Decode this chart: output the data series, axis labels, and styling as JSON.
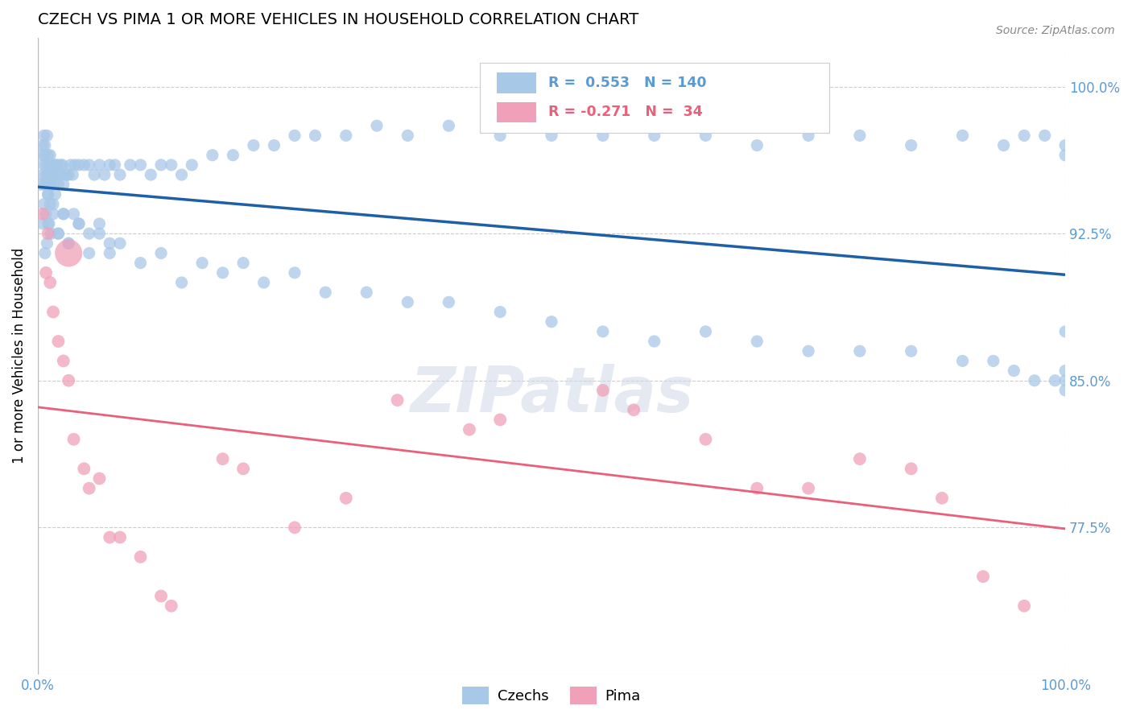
{
  "title": "CZECH VS PIMA 1 OR MORE VEHICLES IN HOUSEHOLD CORRELATION CHART",
  "source_text": "Source: ZipAtlas.com",
  "ylabel": "1 or more Vehicles in Household",
  "xlim": [
    0.0,
    100.0
  ],
  "ylim": [
    70.0,
    102.5
  ],
  "yticks": [
    77.5,
    85.0,
    92.5,
    100.0
  ],
  "ytick_labels": [
    "77.5%",
    "85.0%",
    "92.5%",
    "100.0%"
  ],
  "xtick_labels": [
    "0.0%",
    "100.0%"
  ],
  "czechs_R": 0.553,
  "czechs_N": 140,
  "pima_R": -0.271,
  "pima_N": 34,
  "blue_color": "#5b9bd5",
  "pink_color": "#e8607a",
  "dot_blue": "#a8c8e8",
  "dot_pink": "#f0a0b8",
  "trend_blue": "#1f5fa6",
  "trend_pink": "#e8607a",
  "background_color": "#ffffff",
  "grid_color": "#cccccc",
  "czechs_x": [
    0.3,
    0.4,
    0.5,
    0.5,
    0.6,
    0.6,
    0.7,
    0.7,
    0.7,
    0.8,
    0.8,
    0.9,
    0.9,
    1.0,
    1.0,
    1.0,
    1.1,
    1.1,
    1.2,
    1.2,
    1.3,
    1.3,
    1.4,
    1.5,
    1.5,
    1.6,
    1.7,
    1.8,
    1.9,
    2.0,
    2.1,
    2.2,
    2.3,
    2.4,
    2.5,
    2.8,
    3.0,
    3.2,
    3.4,
    3.6,
    4.0,
    4.5,
    5.0,
    5.5,
    6.0,
    6.5,
    7.0,
    7.5,
    8.0,
    9.0,
    10.0,
    11.0,
    12.0,
    13.0,
    14.0,
    15.0,
    17.0,
    19.0,
    21.0,
    23.0,
    25.0,
    27.0,
    30.0,
    33.0,
    36.0,
    40.0,
    45.0,
    50.0,
    55.0,
    60.0,
    65.0,
    70.0,
    75.0,
    80.0,
    85.0,
    90.0,
    94.0,
    96.0,
    98.0,
    100.0,
    0.5,
    0.6,
    0.7,
    0.8,
    0.9,
    1.0,
    1.1,
    1.2,
    1.3,
    1.5,
    1.7,
    2.0,
    2.5,
    3.0,
    4.0,
    5.0,
    6.0,
    7.0,
    8.0,
    10.0,
    12.0,
    14.0,
    16.0,
    18.0,
    20.0,
    22.0,
    25.0,
    28.0,
    32.0,
    36.0,
    40.0,
    45.0,
    50.0,
    55.0,
    60.0,
    65.0,
    70.0,
    75.0,
    80.0,
    85.0,
    90.0,
    93.0,
    95.0,
    97.0,
    99.0,
    100.0,
    100.0,
    100.0,
    100.0,
    100.0,
    1.0,
    1.5,
    2.0,
    2.5,
    3.0,
    3.5,
    4.0,
    5.0,
    6.0,
    7.0
  ],
  "czechs_y": [
    95.0,
    96.5,
    97.0,
    95.5,
    96.0,
    97.5,
    95.0,
    96.5,
    97.0,
    95.5,
    96.0,
    95.0,
    97.5,
    94.5,
    95.5,
    96.5,
    95.0,
    96.0,
    95.5,
    96.5,
    95.0,
    96.0,
    95.5,
    95.0,
    96.0,
    95.5,
    96.0,
    95.5,
    96.0,
    95.0,
    95.5,
    96.0,
    95.5,
    96.0,
    95.0,
    95.5,
    95.5,
    96.0,
    95.5,
    96.0,
    96.0,
    96.0,
    96.0,
    95.5,
    96.0,
    95.5,
    96.0,
    96.0,
    95.5,
    96.0,
    96.0,
    95.5,
    96.0,
    96.0,
    95.5,
    96.0,
    96.5,
    96.5,
    97.0,
    97.0,
    97.5,
    97.5,
    97.5,
    98.0,
    97.5,
    98.0,
    97.5,
    97.5,
    97.5,
    97.5,
    97.5,
    97.0,
    97.5,
    97.5,
    97.0,
    97.5,
    97.0,
    97.5,
    97.5,
    97.0,
    93.0,
    94.0,
    91.5,
    93.5,
    92.0,
    94.5,
    93.0,
    94.0,
    92.5,
    93.5,
    94.5,
    92.5,
    93.5,
    92.0,
    93.0,
    91.5,
    92.5,
    91.5,
    92.0,
    91.0,
    91.5,
    90.0,
    91.0,
    90.5,
    91.0,
    90.0,
    90.5,
    89.5,
    89.5,
    89.0,
    89.0,
    88.5,
    88.0,
    87.5,
    87.0,
    87.5,
    87.0,
    86.5,
    86.5,
    86.5,
    86.0,
    86.0,
    85.5,
    85.0,
    85.0,
    85.5,
    85.0,
    84.5,
    87.5,
    96.5,
    93.0,
    94.0,
    92.5,
    93.5,
    92.0,
    93.5,
    93.0,
    92.5,
    93.0,
    92.0
  ],
  "pima_x": [
    0.5,
    0.8,
    1.0,
    1.5,
    2.0,
    3.0,
    4.5,
    6.0,
    8.0,
    10.0,
    13.0,
    18.0,
    25.0,
    35.0,
    45.0,
    55.0,
    65.0,
    75.0,
    85.0,
    92.0,
    1.2,
    2.5,
    5.0,
    7.0,
    12.0,
    20.0,
    30.0,
    42.0,
    58.0,
    70.0,
    80.0,
    88.0,
    3.5,
    96.0
  ],
  "pima_y": [
    93.5,
    90.5,
    92.5,
    88.5,
    87.0,
    85.0,
    80.5,
    80.0,
    77.0,
    76.0,
    73.5,
    81.0,
    77.5,
    84.0,
    83.0,
    84.5,
    82.0,
    79.5,
    80.5,
    75.0,
    90.0,
    86.0,
    79.5,
    77.0,
    74.0,
    80.5,
    79.0,
    82.5,
    83.5,
    79.5,
    81.0,
    79.0,
    82.0,
    73.5
  ],
  "pima_large_x": 3.0,
  "pima_large_y": 91.5,
  "pima_large_size": 600
}
